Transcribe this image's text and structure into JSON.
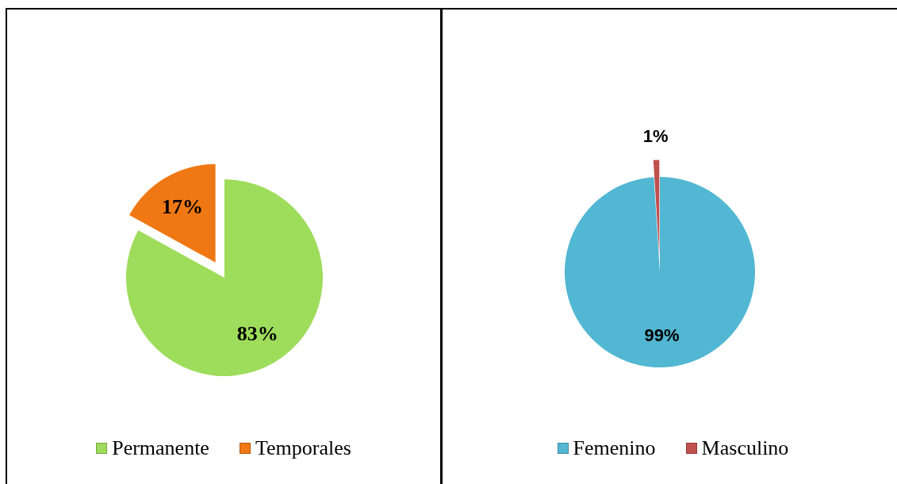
{
  "chart_data": [
    {
      "type": "pie",
      "categories": [
        "Permanente",
        "Temporales"
      ],
      "values": [
        83,
        17
      ],
      "colors": [
        "#9edc5b",
        "#f07814"
      ],
      "value_labels": [
        "83%",
        "17%"
      ],
      "legend": "bottom"
    },
    {
      "type": "pie",
      "categories": [
        "Femenino",
        "Masculino"
      ],
      "values": [
        99,
        1
      ],
      "colors": [
        "#52b7d3",
        "#c0504d"
      ],
      "value_labels": [
        "99%",
        "1%"
      ],
      "legend": "bottom"
    }
  ]
}
